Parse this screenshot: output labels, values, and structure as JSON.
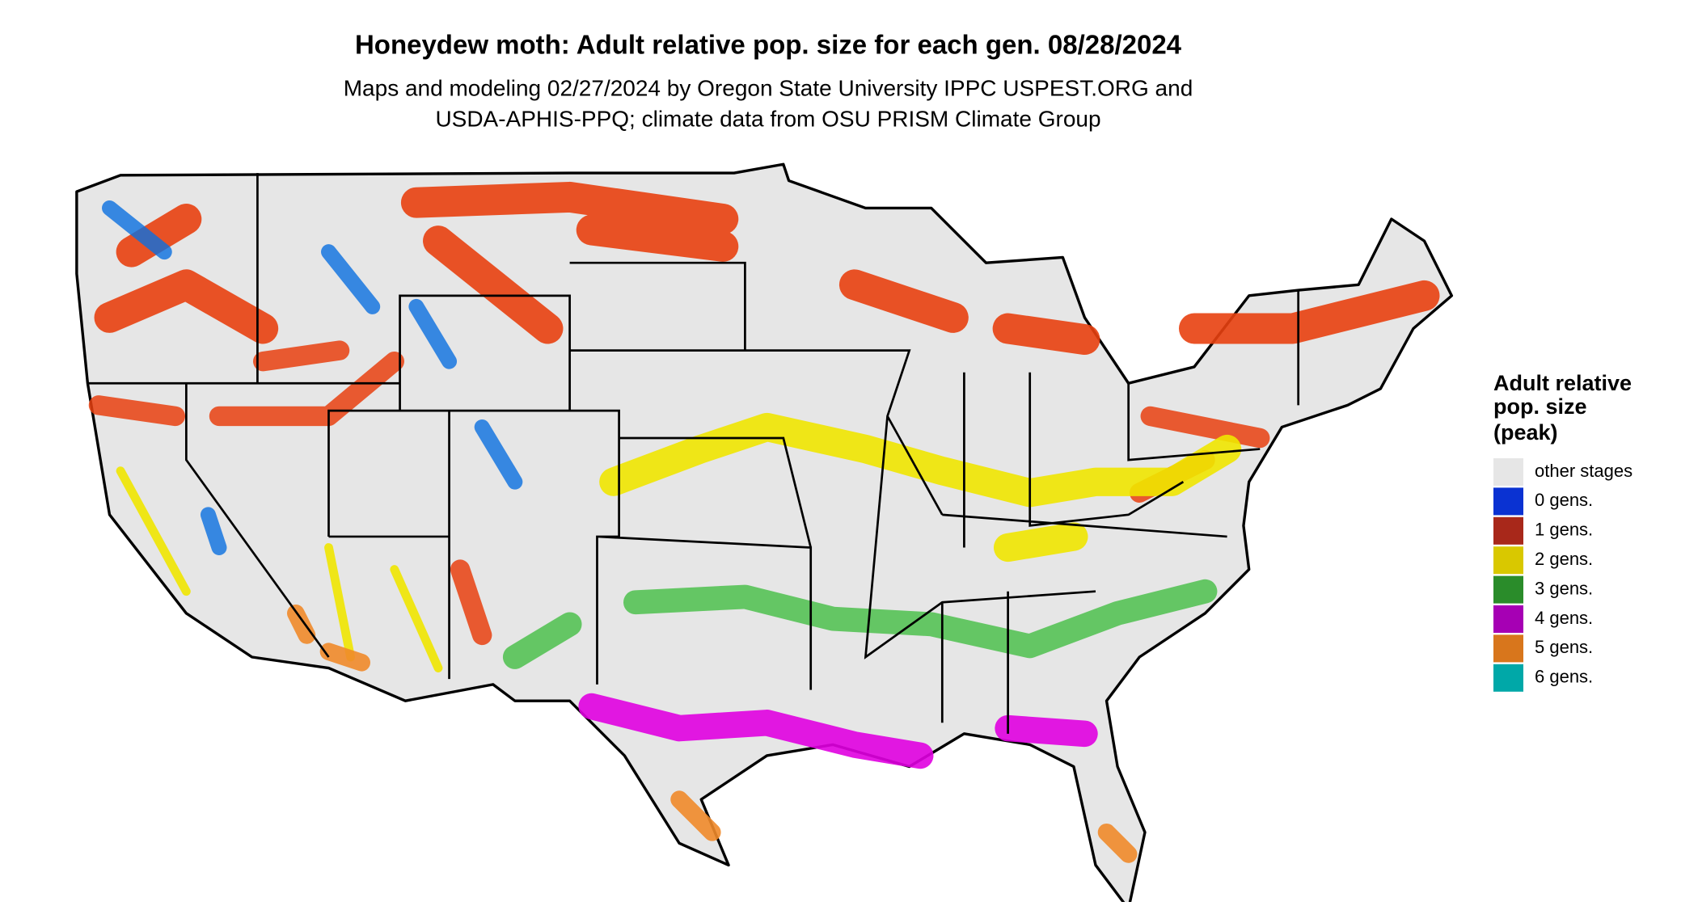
{
  "title": "Honeydew moth: Adult relative pop. size for each gen. 08/28/2024",
  "subtitle": [
    "Maps and modeling 02/27/2024 by Oregon State University IPPC USPEST.ORG and",
    "USDA-APHIS-PPQ; climate data from OSU PRISM Climate Group"
  ],
  "legend": {
    "title": [
      "Adult relative",
      "pop. size",
      "(peak)"
    ],
    "items": [
      {
        "label": "other stages",
        "color": "#e6e6e6"
      },
      {
        "label": "0 gens.",
        "color": "#0a32d2"
      },
      {
        "label": "1 gens.",
        "color": "#a8281a"
      },
      {
        "label": "2 gens.",
        "color": "#d9c800"
      },
      {
        "label": "3 gens.",
        "color": "#2a8c2a"
      },
      {
        "label": "4 gens.",
        "color": "#a600b4"
      },
      {
        "label": "5 gens.",
        "color": "#d8761c"
      },
      {
        "label": "6 gens.",
        "color": "#00a8a8"
      }
    ]
  }
}
